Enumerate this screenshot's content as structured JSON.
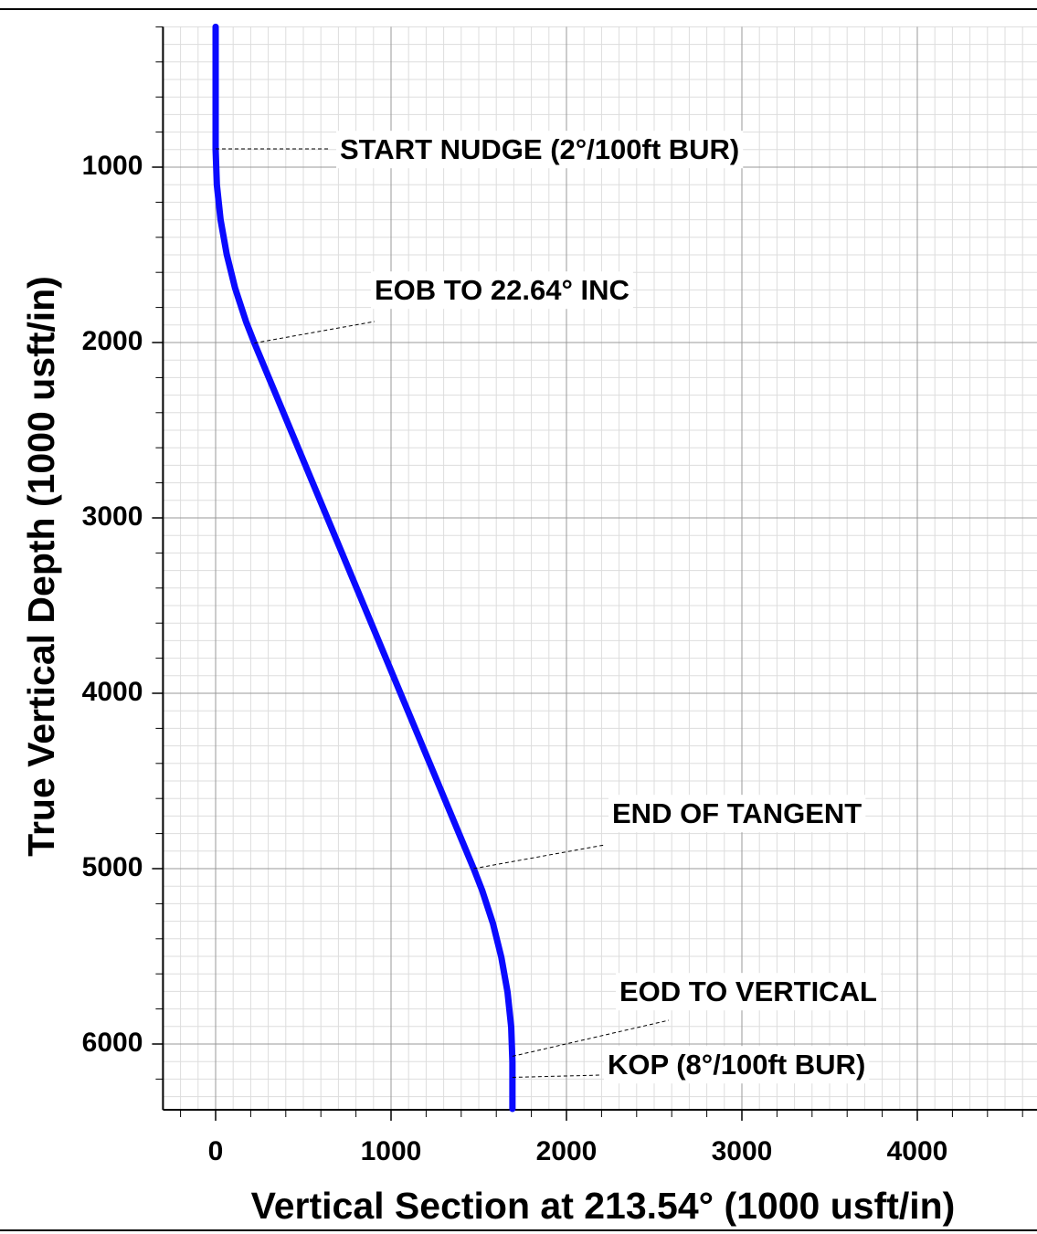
{
  "chart_data": {
    "type": "line",
    "xlabel": "Vertical Section at 213.54° (1000 usft/in)",
    "ylabel": "True Vertical Depth (1000 usft/in)",
    "xlim": [
      -300,
      4700
    ],
    "ylim": [
      200,
      6375
    ],
    "xticks": [
      0,
      1000,
      2000,
      3000,
      4000
    ],
    "yticks": [
      1000,
      2000,
      3000,
      4000,
      5000,
      6000
    ],
    "y_inverted": true,
    "grid": true,
    "series": [
      {
        "color": "#0a0aff",
        "x": [
          0,
          0,
          7,
          28,
          63,
          111,
          173,
          221,
          1471,
          1519,
          1581,
          1629,
          1664,
          1685,
          1692,
          1692
        ],
        "y": [
          200,
          900,
          1100,
          1299,
          1496,
          1690,
          1880,
          2003,
          5000,
          5123,
          5313,
          5507,
          5704,
          5903,
          6103,
          6370
        ]
      }
    ],
    "annotations": [
      {
        "text": "START NUDGE (2°/100ft BUR)",
        "x": 0,
        "y": 896
      },
      {
        "text": "EOB TO 22.64° INC",
        "x": 221,
        "y": 2003
      },
      {
        "text": "END OF TANGENT",
        "x": 1471,
        "y": 5000
      },
      {
        "text": "EOD TO VERTICAL",
        "x": 1692,
        "y": 6070
      },
      {
        "text": "KOP (8°/100ft BUR)",
        "x": 1692,
        "y": 6190
      }
    ]
  }
}
